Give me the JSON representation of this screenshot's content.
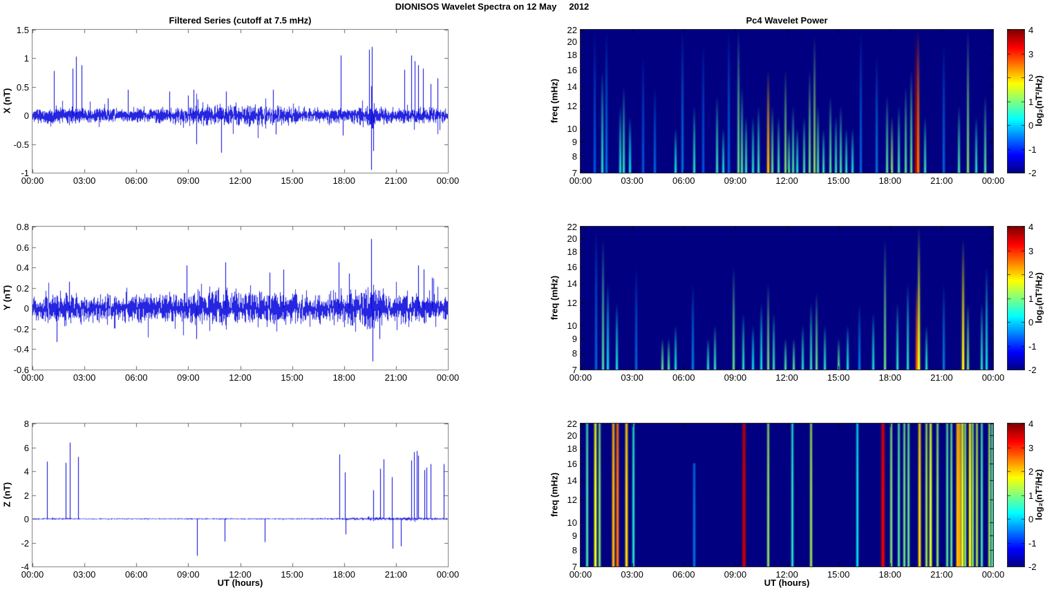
{
  "figure": {
    "title": "DIONISOS Wavelet Spectra on 12 May     2012"
  },
  "colors": {
    "series_line": "#0000DC",
    "spectro_background": "#00008F",
    "colorbar_top": "#800000",
    "axis_box": "#858585"
  },
  "chart_data": [
    {
      "name": "x-filtered-series",
      "type": "line",
      "title": "Filtered Series (cutoff at 7.5 mHz)",
      "ylabel": "X (nT)",
      "xlim": [
        0,
        24
      ],
      "ylim": [
        -1,
        1.5
      ],
      "yticks": [
        "1.5",
        "1",
        "0.5",
        "0",
        "-0.5",
        "-1"
      ],
      "xticks": [
        "00:00",
        "03:00",
        "06:00",
        "09:00",
        "12:00",
        "15:00",
        "18:00",
        "21:00",
        "00:00"
      ],
      "line_color": "#0000DC",
      "noise": {
        "seed": 11,
        "envelope": [
          [
            0,
            0.1
          ],
          [
            1.5,
            0.13
          ],
          [
            3,
            0.11
          ],
          [
            5,
            0.1
          ],
          [
            8,
            0.11
          ],
          [
            9.5,
            0.15
          ],
          [
            11,
            0.16
          ],
          [
            13,
            0.15
          ],
          [
            15,
            0.14
          ],
          [
            16,
            0.11
          ],
          [
            18,
            0.12
          ],
          [
            19.3,
            0.13
          ],
          [
            19.6,
            0.25
          ],
          [
            20,
            0.12
          ],
          [
            21,
            0.1
          ],
          [
            22,
            0.13
          ],
          [
            23,
            0.12
          ],
          [
            24,
            0.11
          ]
        ]
      },
      "spikes": [
        [
          1.25,
          0.78
        ],
        [
          2.3,
          0.82
        ],
        [
          2.5,
          1.03
        ],
        [
          2.85,
          0.88
        ],
        [
          4.35,
          0.3
        ],
        [
          5.5,
          0.45
        ],
        [
          7.9,
          0.42
        ],
        [
          9.0,
          0.35
        ],
        [
          9.3,
          0.45
        ],
        [
          9.45,
          -0.5
        ],
        [
          10.9,
          -0.65
        ],
        [
          11.2,
          0.42
        ],
        [
          13.9,
          0.45
        ],
        [
          14.05,
          -0.33
        ],
        [
          17.8,
          1.05
        ],
        [
          17.95,
          -0.35
        ],
        [
          19.45,
          1.15
        ],
        [
          19.55,
          -0.95
        ],
        [
          19.6,
          1.2
        ],
        [
          19.7,
          -0.62
        ],
        [
          21.5,
          0.8
        ],
        [
          21.9,
          1.05
        ],
        [
          22.1,
          0.95
        ],
        [
          22.3,
          0.88
        ],
        [
          22.55,
          0.82
        ],
        [
          23.0,
          0.55
        ],
        [
          23.4,
          0.65
        ]
      ]
    },
    {
      "name": "x-wavelet-power",
      "type": "heatmap",
      "title": "Pc4 Wavelet Power",
      "ylabel": "freq (mHz)",
      "xlim": [
        0,
        24
      ],
      "ylim": [
        7,
        22
      ],
      "yscale": "log",
      "yticks": [
        "22",
        "20",
        "18",
        "16",
        "14",
        "12",
        "10",
        "9",
        "8",
        "7"
      ],
      "xticks": [
        "00:00",
        "03:00",
        "06:00",
        "09:00",
        "12:00",
        "15:00",
        "18:00",
        "21:00",
        "00:00"
      ],
      "background_level": -2,
      "taper": 1,
      "colorbar": {
        "range": [
          -2,
          4
        ],
        "ticks": [
          "4",
          "3",
          "2",
          "1",
          "0",
          "-1",
          "-2"
        ],
        "label": "log₂(nT²/Hz)"
      },
      "streaks": [
        [
          0.8,
          22,
          -0.6
        ],
        [
          1.25,
          16,
          0.5
        ],
        [
          1.5,
          22,
          -0.4
        ],
        [
          2.3,
          12,
          0.4
        ],
        [
          2.5,
          14,
          0.6
        ],
        [
          2.85,
          11,
          0.3
        ],
        [
          3.6,
          18,
          -0.6
        ],
        [
          4.3,
          14,
          -0.5
        ],
        [
          5.5,
          10,
          0.4
        ],
        [
          5.9,
          22,
          -0.4
        ],
        [
          6.6,
          12,
          0.5
        ],
        [
          7.1,
          20,
          -0.6
        ],
        [
          7.9,
          13,
          0.6
        ],
        [
          8.3,
          10,
          0.4
        ],
        [
          8.6,
          22,
          -0.5
        ],
        [
          9.15,
          22,
          0.9
        ],
        [
          9.35,
          14,
          0.8
        ],
        [
          9.6,
          11,
          0.6
        ],
        [
          10.0,
          11,
          0.5
        ],
        [
          10.35,
          12,
          0.6
        ],
        [
          10.9,
          16,
          2.2
        ],
        [
          11.15,
          12,
          0.9
        ],
        [
          11.5,
          11,
          0.7
        ],
        [
          11.9,
          16,
          1.1
        ],
        [
          12.1,
          10,
          0.8
        ],
        [
          12.35,
          12,
          0.7
        ],
        [
          12.6,
          10,
          0.5
        ],
        [
          13.0,
          11,
          0.7
        ],
        [
          13.3,
          16,
          1.0
        ],
        [
          13.6,
          21,
          1.2
        ],
        [
          13.8,
          12,
          0.8
        ],
        [
          14.1,
          10,
          0.6
        ],
        [
          14.5,
          13,
          0.8
        ],
        [
          14.85,
          11,
          0.6
        ],
        [
          15.1,
          12,
          0.7
        ],
        [
          15.45,
          10,
          0.5
        ],
        [
          15.8,
          10,
          0.4
        ],
        [
          16.3,
          22,
          -0.5
        ],
        [
          17.2,
          18,
          -0.4
        ],
        [
          17.8,
          13,
          0.8
        ],
        [
          18.1,
          11,
          1.2
        ],
        [
          18.5,
          12,
          0.7
        ],
        [
          18.9,
          14,
          0.8
        ],
        [
          19.2,
          16,
          0.9
        ],
        [
          19.5,
          22,
          3.8
        ],
        [
          19.62,
          22,
          2.6
        ],
        [
          20.0,
          11,
          0.6
        ],
        [
          21.1,
          20,
          -0.5
        ],
        [
          22.0,
          12,
          0.7
        ],
        [
          22.5,
          22,
          1.1
        ],
        [
          23.0,
          11,
          0.5
        ],
        [
          23.5,
          13,
          0.8
        ]
      ]
    },
    {
      "name": "y-filtered-series",
      "type": "line",
      "ylabel": "Y (nT)",
      "xlim": [
        0,
        24
      ],
      "ylim": [
        -0.6,
        0.8
      ],
      "yticks": [
        "0.8",
        "0.6",
        "0.4",
        "0.2",
        "0",
        "-0.2",
        "-0.4",
        "-0.6"
      ],
      "xticks": [
        "00:00",
        "03:00",
        "06:00",
        "09:00",
        "12:00",
        "15:00",
        "18:00",
        "21:00",
        "00:00"
      ],
      "line_color": "#0000DC",
      "noise": {
        "seed": 23,
        "envelope": [
          [
            0,
            0.09
          ],
          [
            1,
            0.12
          ],
          [
            2.2,
            0.13
          ],
          [
            3,
            0.1
          ],
          [
            5,
            0.11
          ],
          [
            8,
            0.12
          ],
          [
            9,
            0.14
          ],
          [
            11,
            0.15
          ],
          [
            12,
            0.14
          ],
          [
            13.5,
            0.15
          ],
          [
            15,
            0.12
          ],
          [
            16,
            0.1
          ],
          [
            17.5,
            0.14
          ],
          [
            19,
            0.13
          ],
          [
            19.8,
            0.17
          ],
          [
            21,
            0.11
          ],
          [
            22.5,
            0.14
          ],
          [
            24,
            0.1
          ]
        ]
      },
      "spikes": [
        [
          1.4,
          -0.33
        ],
        [
          2.1,
          0.26
        ],
        [
          8.9,
          0.42
        ],
        [
          9.45,
          -0.3
        ],
        [
          11.15,
          0.45
        ],
        [
          13.7,
          0.35
        ],
        [
          14.5,
          0.38
        ],
        [
          17.7,
          0.45
        ],
        [
          18.3,
          0.34
        ],
        [
          19.55,
          0.68
        ],
        [
          19.65,
          -0.52
        ],
        [
          20.05,
          -0.3
        ],
        [
          22.3,
          0.42
        ],
        [
          22.6,
          0.38
        ],
        [
          23.1,
          0.3
        ]
      ]
    },
    {
      "name": "y-wavelet-power",
      "type": "heatmap",
      "ylabel": "freq (mHz)",
      "xlim": [
        0,
        24
      ],
      "ylim": [
        7,
        22
      ],
      "yscale": "log",
      "yticks": [
        "22",
        "20",
        "18",
        "16",
        "14",
        "12",
        "10",
        "9",
        "8",
        "7"
      ],
      "xticks": [
        "00:00",
        "03:00",
        "06:00",
        "09:00",
        "12:00",
        "15:00",
        "18:00",
        "21:00",
        "00:00"
      ],
      "background_level": -2,
      "taper": 1,
      "colorbar": {
        "range": [
          -2,
          4
        ],
        "ticks": [
          "4",
          "3",
          "2",
          "1",
          "0",
          "-1",
          "-2"
        ],
        "label": "log₂(nT²/Hz)"
      },
      "streaks": [
        [
          0.9,
          22,
          -0.5
        ],
        [
          1.3,
          20,
          0.8
        ],
        [
          1.55,
          14,
          0.3
        ],
        [
          2.1,
          12,
          0.4
        ],
        [
          3.2,
          16,
          -0.5
        ],
        [
          4.75,
          9,
          0.9
        ],
        [
          5.1,
          9,
          0.8
        ],
        [
          5.5,
          10,
          0.4
        ],
        [
          6.5,
          14,
          -0.3
        ],
        [
          7.4,
          9,
          0.45
        ],
        [
          7.8,
          10,
          0.6
        ],
        [
          8.9,
          16,
          0.9
        ],
        [
          9.45,
          11,
          0.5
        ],
        [
          10.0,
          10,
          0.3
        ],
        [
          10.5,
          12,
          0.4
        ],
        [
          10.9,
          14,
          1.0
        ],
        [
          11.2,
          11,
          0.6
        ],
        [
          11.9,
          9,
          0.7
        ],
        [
          12.4,
          9,
          0.8
        ],
        [
          12.9,
          10,
          0.5
        ],
        [
          13.4,
          12,
          0.6
        ],
        [
          13.7,
          13,
          0.9
        ],
        [
          14.2,
          10,
          0.5
        ],
        [
          15.0,
          9,
          0.8
        ],
        [
          15.5,
          10,
          0.4
        ],
        [
          16.2,
          12,
          -0.3
        ],
        [
          17.0,
          11,
          0.4
        ],
        [
          17.7,
          20,
          1.0
        ],
        [
          18.4,
          12,
          0.5
        ],
        [
          19.0,
          14,
          0.5
        ],
        [
          19.55,
          14,
          2.8
        ],
        [
          19.65,
          22,
          1.6
        ],
        [
          20.1,
          10,
          0.5
        ],
        [
          21.1,
          14,
          -0.3
        ],
        [
          22.25,
          20,
          1.8
        ],
        [
          22.5,
          12,
          1.0
        ],
        [
          23.3,
          12,
          0.5
        ],
        [
          23.6,
          16,
          0.4
        ]
      ]
    },
    {
      "name": "z-filtered-series",
      "type": "line",
      "ylabel": "Z (nT)",
      "xlabel": "UT (hours)",
      "xlim": [
        0,
        24
      ],
      "ylim": [
        -4,
        8
      ],
      "yticks": [
        "8",
        "6",
        "4",
        "2",
        "0",
        "-2",
        "-4"
      ],
      "xticks": [
        "00:00",
        "03:00",
        "06:00",
        "09:00",
        "12:00",
        "15:00",
        "18:00",
        "21:00",
        "00:00"
      ],
      "line_color": "#0000DC",
      "noise": {
        "seed": 37,
        "envelope": [
          [
            0,
            0.05
          ],
          [
            2,
            0.06
          ],
          [
            3,
            0.04
          ],
          [
            8,
            0.04
          ],
          [
            9,
            0.05
          ],
          [
            14,
            0.04
          ],
          [
            17,
            0.05
          ],
          [
            18,
            0.08
          ],
          [
            19,
            0.09
          ],
          [
            20,
            0.1
          ],
          [
            21,
            0.09
          ],
          [
            22,
            0.1
          ],
          [
            23,
            0.08
          ],
          [
            24,
            0.07
          ]
        ]
      },
      "spikes": [
        [
          0.85,
          4.8
        ],
        [
          1.9,
          4.7
        ],
        [
          2.15,
          6.4
        ],
        [
          2.65,
          5.2
        ],
        [
          9.5,
          -3.1
        ],
        [
          11.1,
          -1.9
        ],
        [
          13.4,
          -1.95
        ],
        [
          17.75,
          5.4
        ],
        [
          18.05,
          3.9
        ],
        [
          18.1,
          -1.3
        ],
        [
          19.7,
          2.4
        ],
        [
          20.1,
          4.2
        ],
        [
          20.3,
          5.0
        ],
        [
          20.75,
          3.5
        ],
        [
          20.8,
          -2.5
        ],
        [
          21.3,
          -2.3
        ],
        [
          21.9,
          4.9
        ],
        [
          22.05,
          5.6
        ],
        [
          22.2,
          5.7
        ],
        [
          22.3,
          5.3
        ],
        [
          22.65,
          4.1
        ],
        [
          22.75,
          4.3
        ],
        [
          23.0,
          4.6
        ],
        [
          23.75,
          4.6
        ]
      ]
    },
    {
      "name": "z-wavelet-power",
      "type": "heatmap",
      "ylabel": "freq (mHz)",
      "xlabel": "UT (hours)",
      "xlim": [
        0,
        24
      ],
      "ylim": [
        7,
        22
      ],
      "yscale": "log",
      "yticks": [
        "22",
        "20",
        "18",
        "16",
        "14",
        "12",
        "10",
        "9",
        "8",
        "7"
      ],
      "xticks": [
        "00:00",
        "03:00",
        "06:00",
        "09:00",
        "12:00",
        "15:00",
        "18:00",
        "21:00",
        "00:00"
      ],
      "background_level": -2,
      "taper": 0.2,
      "colorbar": {
        "range": [
          -2,
          4
        ],
        "ticks": [
          "4",
          "3",
          "2",
          "1",
          "0",
          "-1",
          "-2"
        ],
        "label": "log₂(nT²/Hz)"
      },
      "streaks": [
        [
          0.35,
          22,
          0.7
        ],
        [
          0.85,
          22,
          1.6
        ],
        [
          1.1,
          22,
          1.1
        ],
        [
          1.9,
          22,
          2.2
        ],
        [
          2.15,
          22,
          2.6
        ],
        [
          2.65,
          22,
          2.0
        ],
        [
          3.05,
          22,
          0.5
        ],
        [
          6.6,
          16,
          -0.4
        ],
        [
          9.5,
          22,
          3.6
        ],
        [
          10.9,
          22,
          1.2
        ],
        [
          12.3,
          22,
          0.5
        ],
        [
          13.4,
          22,
          1.3
        ],
        [
          16.1,
          22,
          0.3
        ],
        [
          17.55,
          22,
          3.4
        ],
        [
          18.05,
          22,
          1.1
        ],
        [
          18.5,
          22,
          0.8
        ],
        [
          18.8,
          22,
          1.0
        ],
        [
          19.05,
          22,
          0.9
        ],
        [
          19.7,
          22,
          2.0
        ],
        [
          20.1,
          22,
          1.3
        ],
        [
          20.35,
          22,
          1.5
        ],
        [
          20.75,
          22,
          1.1
        ],
        [
          21.3,
          22,
          0.8
        ],
        [
          21.55,
          22,
          0.9
        ],
        [
          21.9,
          22,
          2.1
        ],
        [
          22.05,
          22,
          2.3
        ],
        [
          22.2,
          22,
          1.6
        ],
        [
          22.35,
          22,
          1.2
        ],
        [
          22.65,
          22,
          1.8
        ],
        [
          22.8,
          22,
          1.1
        ],
        [
          23.05,
          22,
          1.4
        ],
        [
          23.3,
          22,
          0.7
        ],
        [
          23.75,
          22,
          1.3
        ],
        [
          23.9,
          22,
          0.8
        ]
      ]
    }
  ]
}
